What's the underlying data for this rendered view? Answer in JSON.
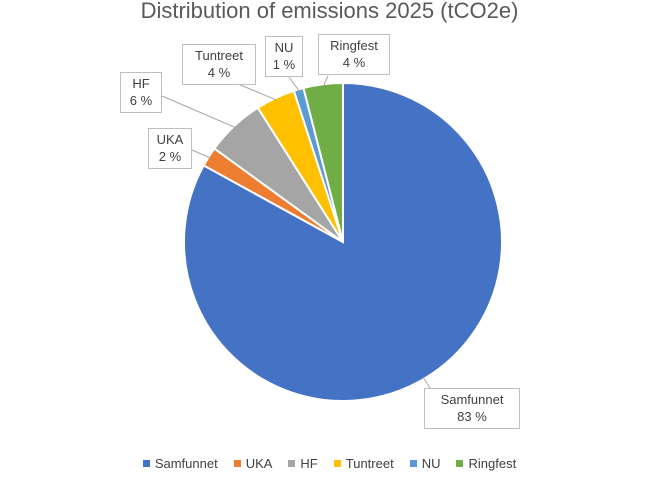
{
  "chart_data": {
    "type": "pie",
    "title": "Distribution of emissions 2025 (tCO2e)",
    "slices": [
      {
        "name": "Samfunnet",
        "value": 83,
        "label": "83 %",
        "color": "#4472C4"
      },
      {
        "name": "UKA",
        "value": 2,
        "label": "2 %",
        "color": "#ED7D31"
      },
      {
        "name": "HF",
        "value": 6,
        "label": "6 %",
        "color": "#A5A5A5"
      },
      {
        "name": "Tuntreet",
        "value": 4,
        "label": "4 %",
        "color": "#FFC000"
      },
      {
        "name": "NU",
        "value": 1,
        "label": "1 %",
        "color": "#5B9BD5"
      },
      {
        "name": "Ringfest",
        "value": 4,
        "label": "4 %",
        "color": "#70AD47"
      }
    ],
    "legend_position": "bottom",
    "legend": [
      "Samfunnet",
      "UKA",
      "HF",
      "Tuntreet",
      "NU",
      "Ringfest"
    ]
  }
}
